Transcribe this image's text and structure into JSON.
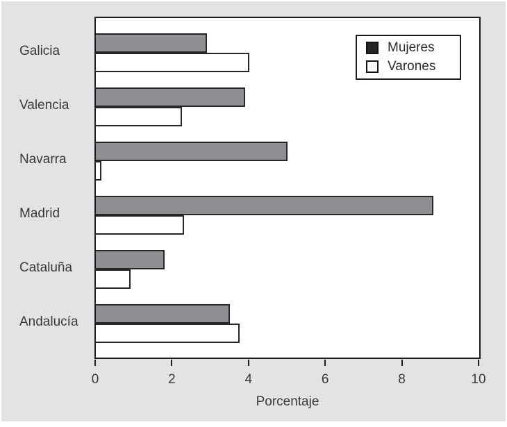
{
  "chart_data": {
    "type": "bar",
    "orientation": "horizontal",
    "title": "",
    "xlabel": "Porcentaje",
    "ylabel": "",
    "categories": [
      "Galicia",
      "Valencia",
      "Navarra",
      "Madrid",
      "Cataluña",
      "Andalucía"
    ],
    "series": [
      {
        "name": "Mujeres",
        "values": [
          2.9,
          3.9,
          5.0,
          8.8,
          1.8,
          3.5
        ],
        "bar_color": "#8e8f92",
        "legend_swatch_color": "#262626"
      },
      {
        "name": "Varones",
        "values": [
          4.0,
          2.25,
          0.15,
          2.3,
          0.9,
          3.75
        ],
        "bar_color": "#ffffff",
        "legend_swatch_color": "#ffffff"
      }
    ],
    "x_ticks": [
      0,
      2,
      4,
      6,
      8,
      10
    ],
    "xlim": [
      0,
      10
    ],
    "legend_position": "top-right",
    "grid": false
  },
  "colors": {
    "figure_background": "#e2e3e4",
    "plot_background": "#ffffff",
    "frame": "#1c1c1c",
    "bar_border": "#262626",
    "text": "#3a3a3a"
  }
}
